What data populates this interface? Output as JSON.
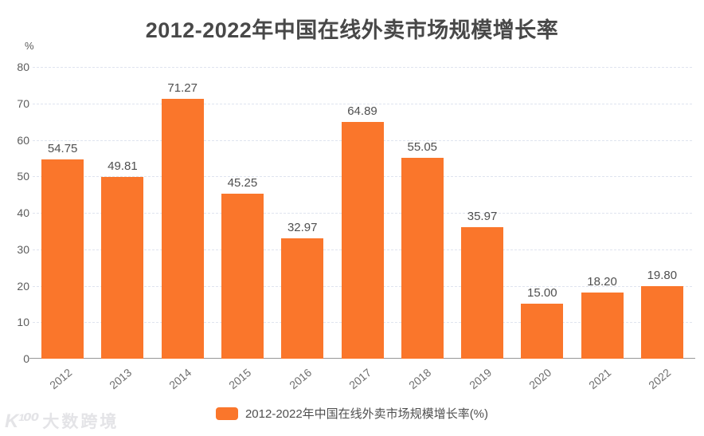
{
  "title": "2012-2022年中国在线外卖市场规模增长率",
  "unit_label": "%",
  "legend": {
    "label": "2012-2022年中国在线外卖市场规模增长率(%)"
  },
  "watermark": {
    "logo": "K¹⁰⁰",
    "text": "大数跨境"
  },
  "colors": {
    "bar": "#FA762B",
    "gridline": "#DFE4EF",
    "axis_line": "#979797",
    "title_text": "#484848",
    "value_label": "#4F4F4F",
    "tick_label": "#5C5C5C"
  },
  "chart_data": {
    "type": "bar",
    "title": "2012-2022年中国在线外卖市场规模增长率",
    "categories": [
      "2012",
      "2013",
      "2014",
      "2015",
      "2016",
      "2017",
      "2018",
      "2019",
      "2020",
      "2021",
      "2022"
    ],
    "values": [
      54.75,
      49.81,
      71.27,
      45.25,
      32.97,
      64.89,
      55.05,
      35.97,
      15.0,
      18.2,
      19.8
    ],
    "value_labels": [
      "54.75",
      "49.81",
      "71.27",
      "45.25",
      "32.97",
      "64.89",
      "55.05",
      "35.97",
      "15.00",
      "18.20",
      "19.80"
    ],
    "series_name": "2012-2022年中国在线外卖市场规模增长率(%)",
    "xlabel": "",
    "ylabel": "%",
    "ylim": [
      0,
      80
    ],
    "ytick_step": 10,
    "grid": true,
    "grid_style": "dashed",
    "legend_position": "bottom",
    "bar_color": "#FA762B",
    "x_label_rotation_deg": -40
  }
}
